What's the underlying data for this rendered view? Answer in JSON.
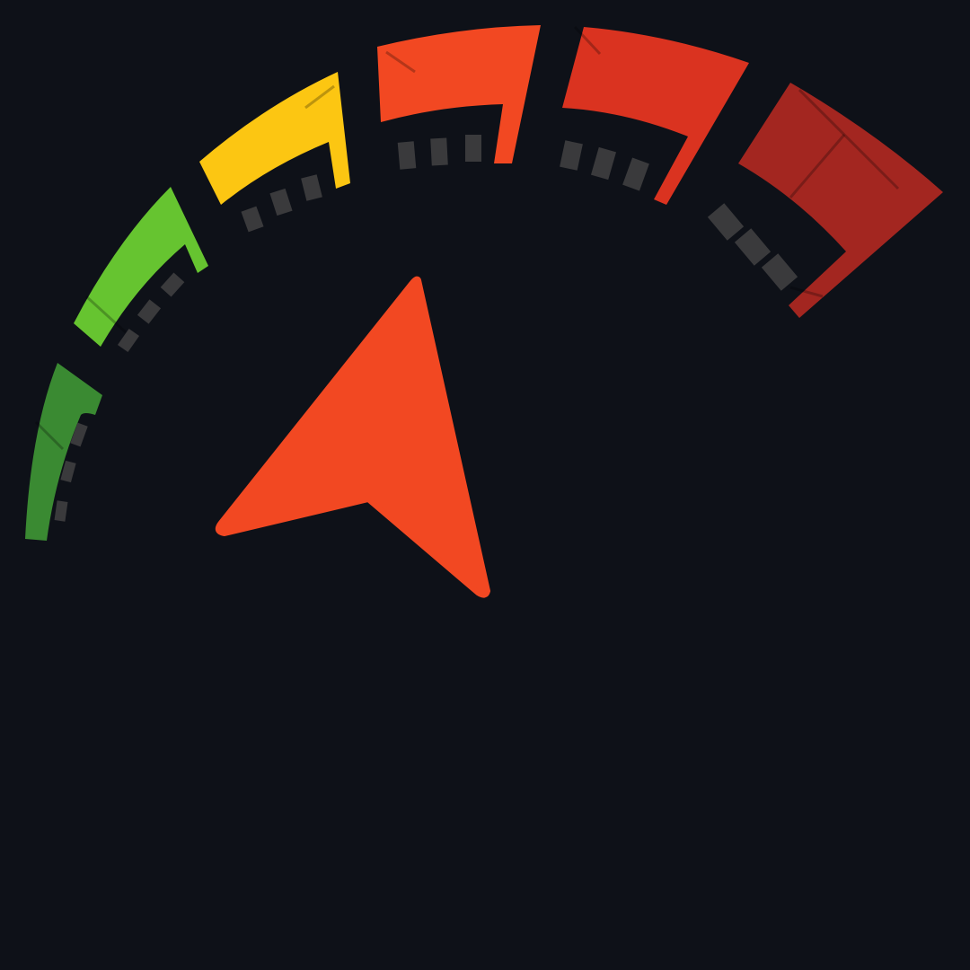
{
  "colors": {
    "background": "#0e1118",
    "segment_dark_green": "#3a8a32",
    "segment_light_green": "#66c430",
    "segment_yellow": "#fcc612",
    "segment_orange": "#f24822",
    "segment_red": "#da3320",
    "segment_dark_red": "#a32620",
    "tick": "#3a3a3c",
    "pointer": "#f24822"
  },
  "gauge": {
    "segment_count": 6,
    "segments": [
      {
        "id": "dark-green",
        "color": "#3a8a32"
      },
      {
        "id": "light-green",
        "color": "#66c430"
      },
      {
        "id": "yellow",
        "color": "#fcc612"
      },
      {
        "id": "orange",
        "color": "#f24822"
      },
      {
        "id": "red",
        "color": "#da3320"
      },
      {
        "id": "dark-red",
        "color": "#a32620"
      }
    ],
    "pointer_icon": "navigation-arrow-icon"
  }
}
